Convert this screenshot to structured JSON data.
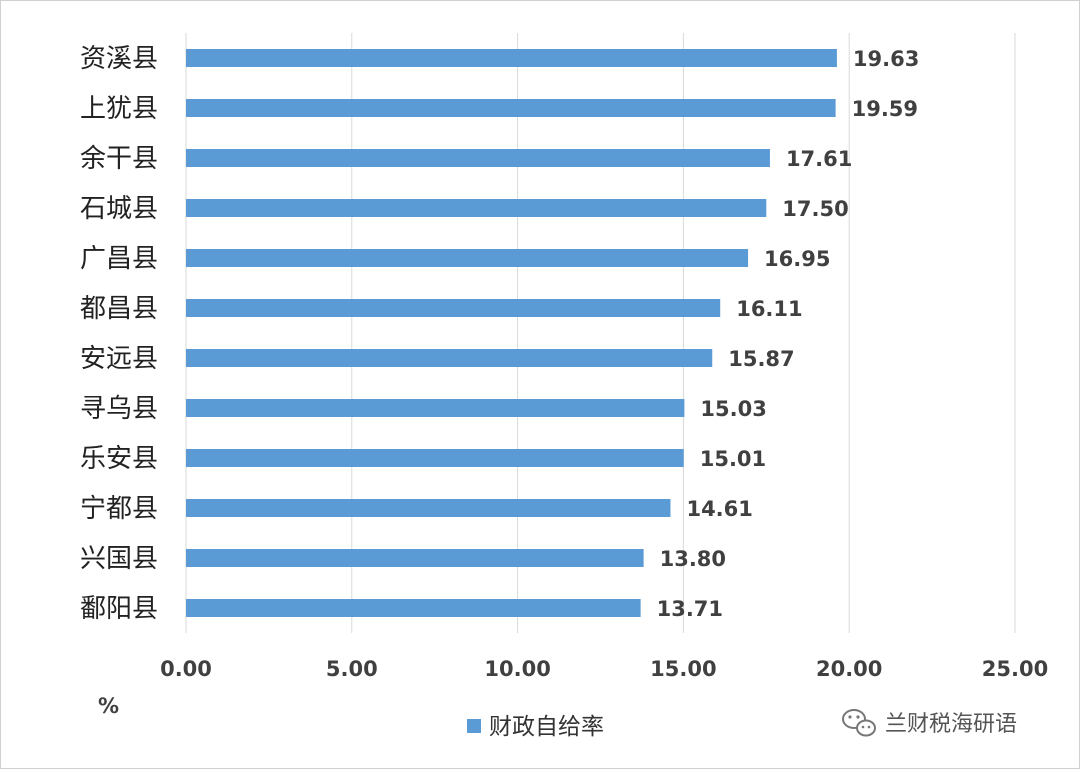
{
  "chart_data": {
    "type": "bar",
    "orientation": "horizontal",
    "categories": [
      "资溪县",
      "上犹县",
      "余干县",
      "石城县",
      "广昌县",
      "都昌县",
      "安远县",
      "寻乌县",
      "乐安县",
      "宁都县",
      "兴国县",
      "鄱阳县"
    ],
    "series": [
      {
        "name": "财政自给率",
        "values": [
          19.63,
          19.59,
          17.61,
          17.5,
          16.95,
          16.11,
          15.87,
          15.03,
          15.01,
          14.61,
          13.8,
          13.71
        ],
        "labels": [
          "19.63",
          "19.59",
          "17.61",
          "17.50",
          "16.95",
          "16.11",
          "15.87",
          "15.03",
          "15.01",
          "14.61",
          "13.80",
          "13.71"
        ],
        "color": "#5b9bd5"
      }
    ],
    "x_ticks": [
      "0.00",
      "5.00",
      "10.00",
      "15.00",
      "20.00",
      "25.00"
    ],
    "x_tick_values": [
      0,
      5,
      10,
      15,
      20,
      25
    ],
    "xlim": [
      0,
      25
    ],
    "x_unit_label": "%",
    "grid": true,
    "legend_position": "bottom",
    "gridline_color": "#d9d9d9"
  },
  "watermark": {
    "text": "兰财税海研语",
    "icon": "wechat-icon"
  }
}
